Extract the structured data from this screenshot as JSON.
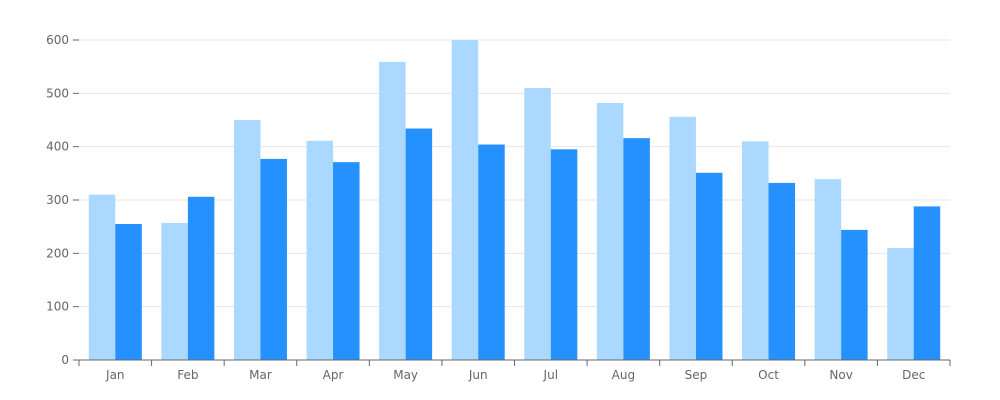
{
  "chart_data": {
    "type": "bar",
    "title": "",
    "xlabel": "",
    "ylabel": "",
    "categories": [
      "Jan",
      "Feb",
      "Mar",
      "Apr",
      "May",
      "Jun",
      "Jul",
      "Aug",
      "Sep",
      "Oct",
      "Nov",
      "Dec"
    ],
    "series": [
      {
        "color": "#aad8ff",
        "values": [
          310,
          257,
          450,
          411,
          559,
          600,
          510,
          482,
          456,
          410,
          339,
          210
        ]
      },
      {
        "color": "#2591ff",
        "values": [
          255,
          306,
          377,
          371,
          434,
          404,
          395,
          416,
          351,
          332,
          244,
          288
        ]
      }
    ],
    "ylim": [
      0,
      600
    ],
    "yticks": [
      0,
      100,
      200,
      300,
      400,
      500,
      600
    ],
    "grid": true,
    "legend": "none"
  },
  "colors": {
    "grid": "#e6e6e6",
    "axis": "#666666",
    "tick_text": "#666666"
  }
}
